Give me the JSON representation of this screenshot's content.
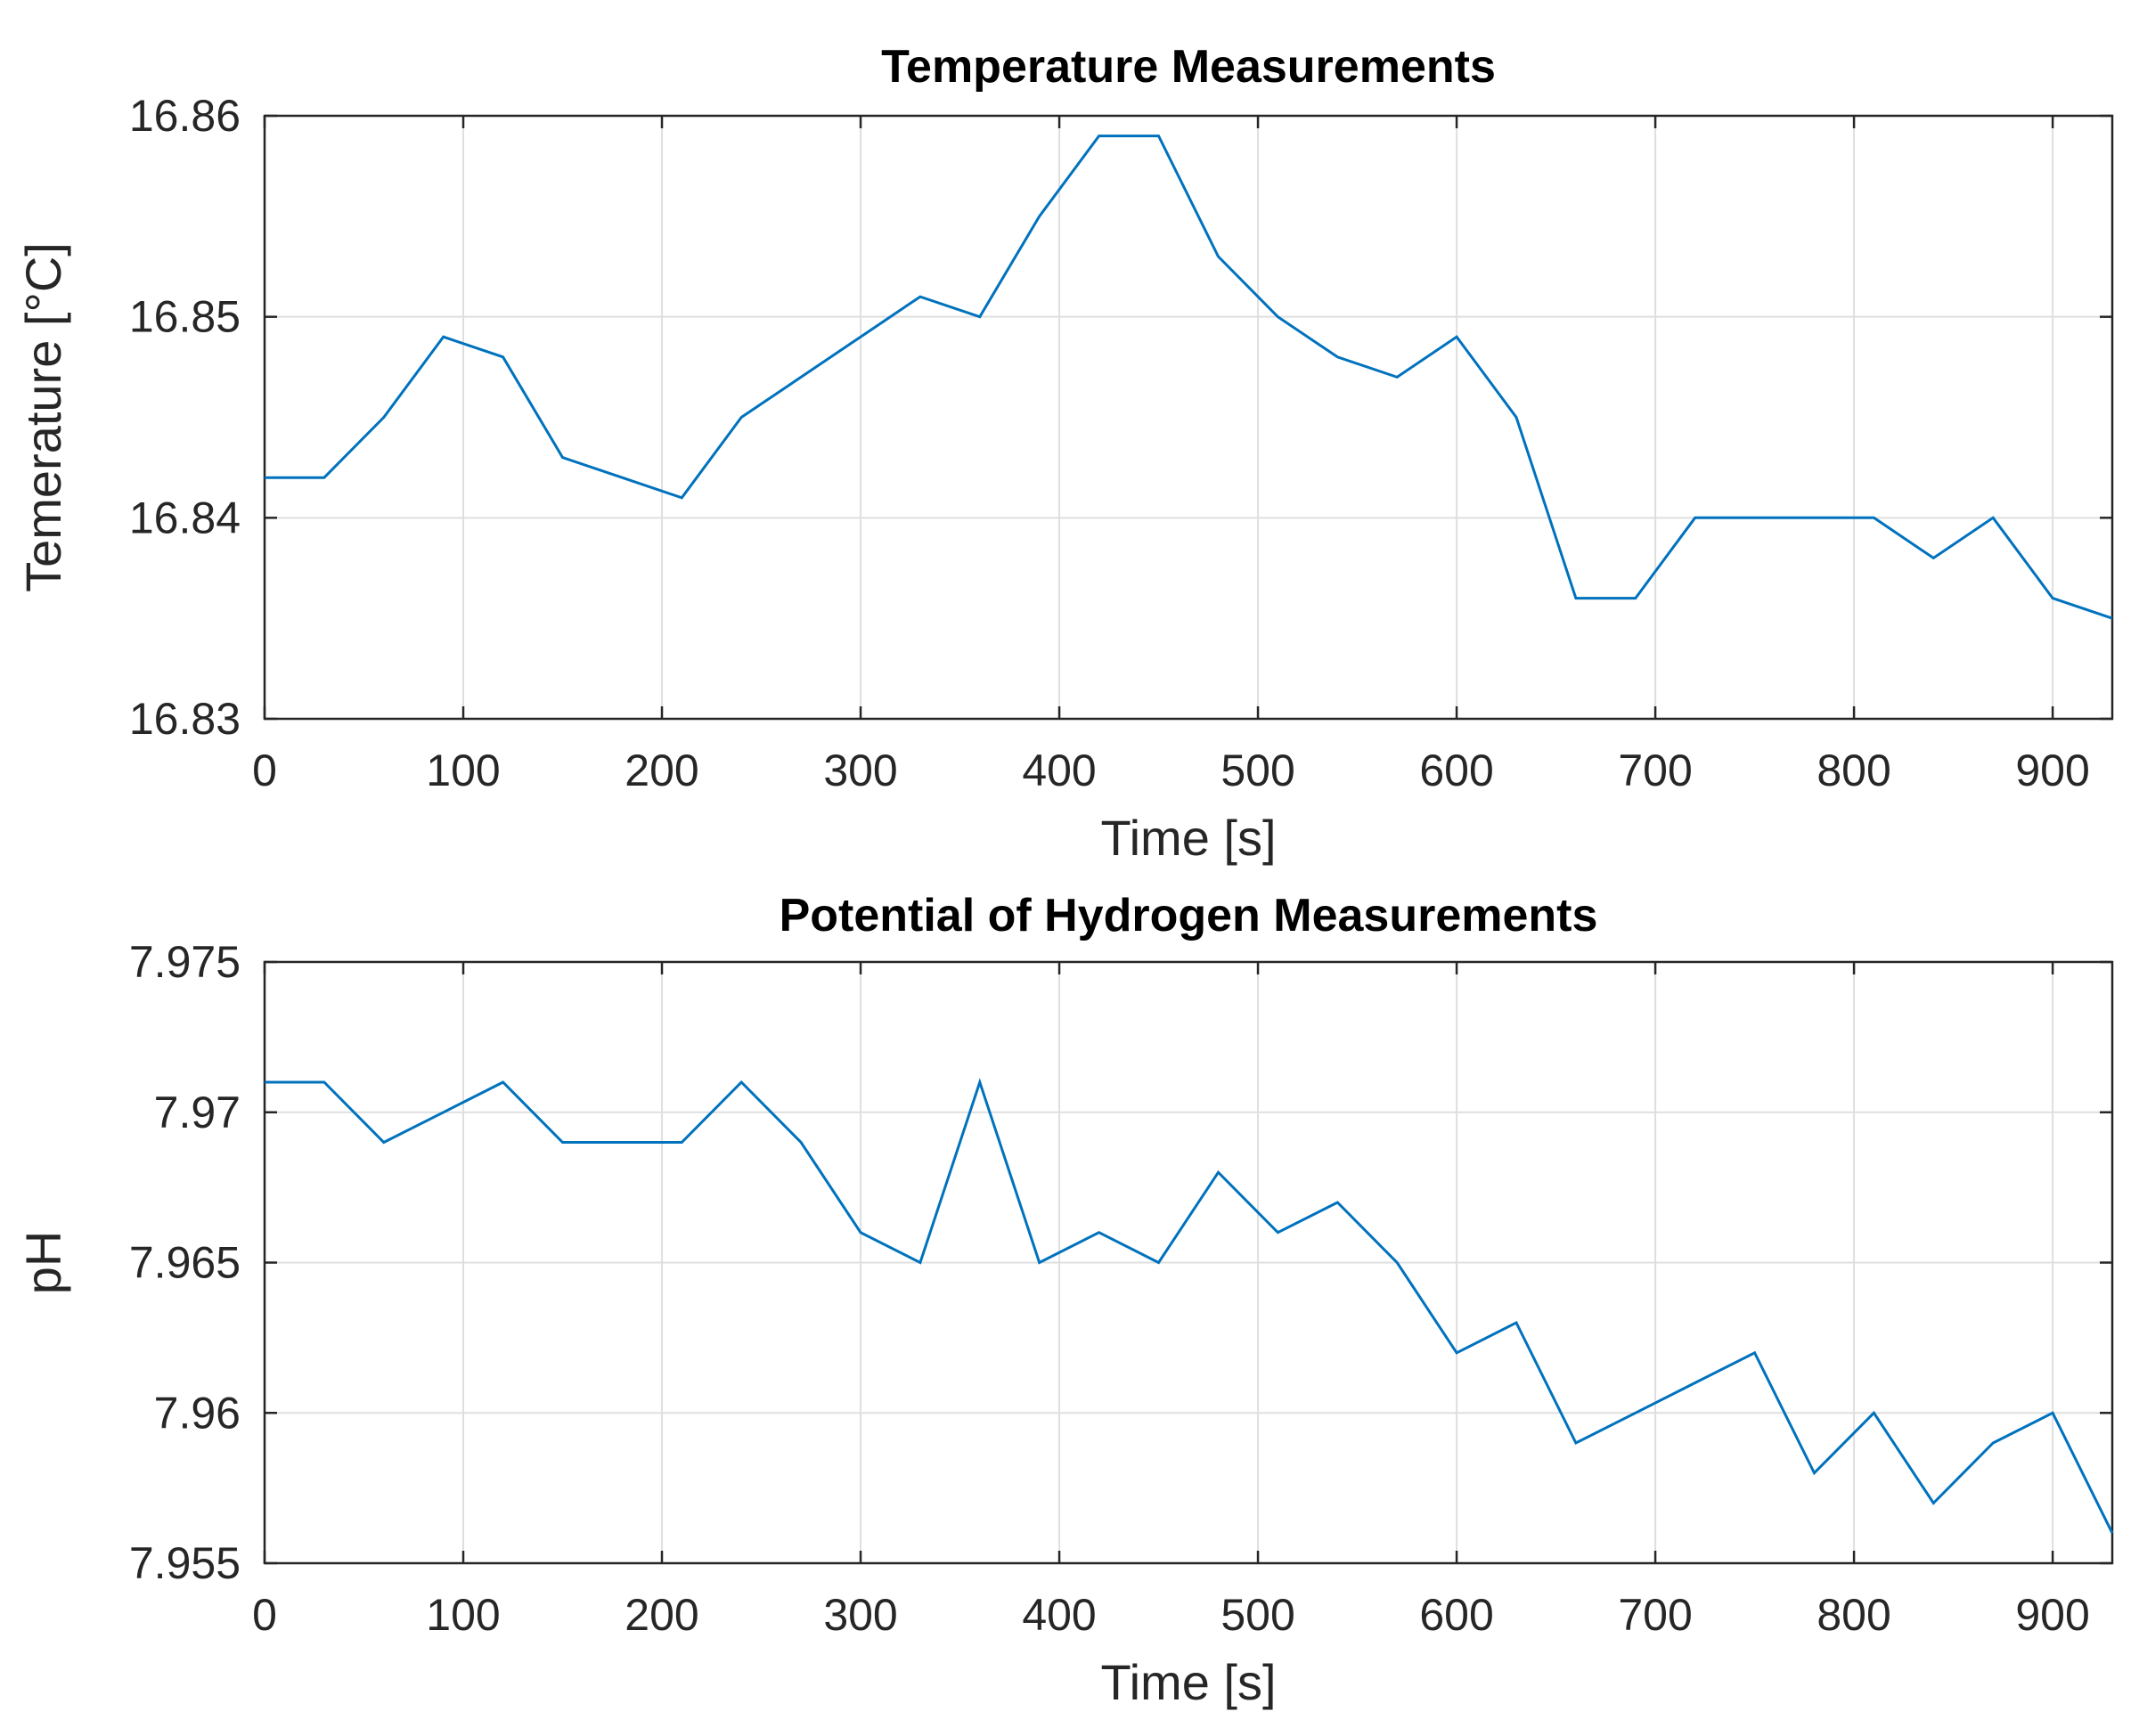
{
  "colors": {
    "series": "#0072BD"
  },
  "chart_data": [
    {
      "type": "line",
      "title": "Temperature Measurements",
      "xlabel": "Time [s]",
      "ylabel": "Temerature [°C]",
      "xlim": [
        0,
        930
      ],
      "ylim": [
        16.83,
        16.86
      ],
      "grid": true,
      "xticks": [
        0,
        100,
        200,
        300,
        400,
        500,
        600,
        700,
        800,
        900
      ],
      "xtick_labels": [
        "0",
        "100",
        "200",
        "300",
        "400",
        "500",
        "600",
        "700",
        "800",
        "900"
      ],
      "yticks": [
        16.83,
        16.84,
        16.85,
        16.86
      ],
      "ytick_labels": [
        "16.83",
        "16.84",
        "16.85",
        "16.86"
      ],
      "series": [
        {
          "name": "Temperature",
          "x": [
            0,
            30,
            60,
            90,
            120,
            150,
            180,
            210,
            240,
            270,
            300,
            330,
            360,
            390,
            420,
            450,
            480,
            510,
            540,
            570,
            600,
            630,
            660,
            690,
            720,
            750,
            780,
            810,
            840,
            870,
            900,
            930
          ],
          "y": [
            16.842,
            16.842,
            16.845,
            16.849,
            16.848,
            16.843,
            16.842,
            16.841,
            16.845,
            16.847,
            16.849,
            16.851,
            16.85,
            16.855,
            16.859,
            16.859,
            16.853,
            16.85,
            16.848,
            16.847,
            16.849,
            16.845,
            16.836,
            16.836,
            16.84,
            16.84,
            16.84,
            16.84,
            16.838,
            16.84,
            16.836,
            16.835
          ]
        }
      ]
    },
    {
      "type": "line",
      "title": "Potential of Hydrogen Measurements",
      "xlabel": "Time [s]",
      "ylabel": "pH",
      "xlim": [
        0,
        930
      ],
      "ylim": [
        7.955,
        7.975
      ],
      "grid": true,
      "xticks": [
        0,
        100,
        200,
        300,
        400,
        500,
        600,
        700,
        800,
        900
      ],
      "xtick_labels": [
        "0",
        "100",
        "200",
        "300",
        "400",
        "500",
        "600",
        "700",
        "800",
        "900"
      ],
      "yticks": [
        7.955,
        7.96,
        7.965,
        7.97,
        7.975
      ],
      "ytick_labels": [
        "7.955",
        "7.96",
        "7.965",
        "7.97",
        "7.975"
      ],
      "series": [
        {
          "name": "pH",
          "x": [
            0,
            30,
            60,
            90,
            120,
            150,
            180,
            210,
            240,
            270,
            300,
            330,
            360,
            390,
            420,
            450,
            480,
            510,
            540,
            570,
            600,
            630,
            660,
            690,
            720,
            750,
            780,
            810,
            840,
            870,
            900,
            930
          ],
          "y": [
            7.971,
            7.971,
            7.969,
            7.97,
            7.971,
            7.969,
            7.969,
            7.969,
            7.971,
            7.969,
            7.966,
            7.965,
            7.971,
            7.965,
            7.966,
            7.965,
            7.968,
            7.966,
            7.967,
            7.965,
            7.962,
            7.963,
            7.959,
            7.96,
            7.961,
            7.962,
            7.958,
            7.96,
            7.957,
            7.959,
            7.96,
            7.956
          ]
        }
      ]
    }
  ]
}
